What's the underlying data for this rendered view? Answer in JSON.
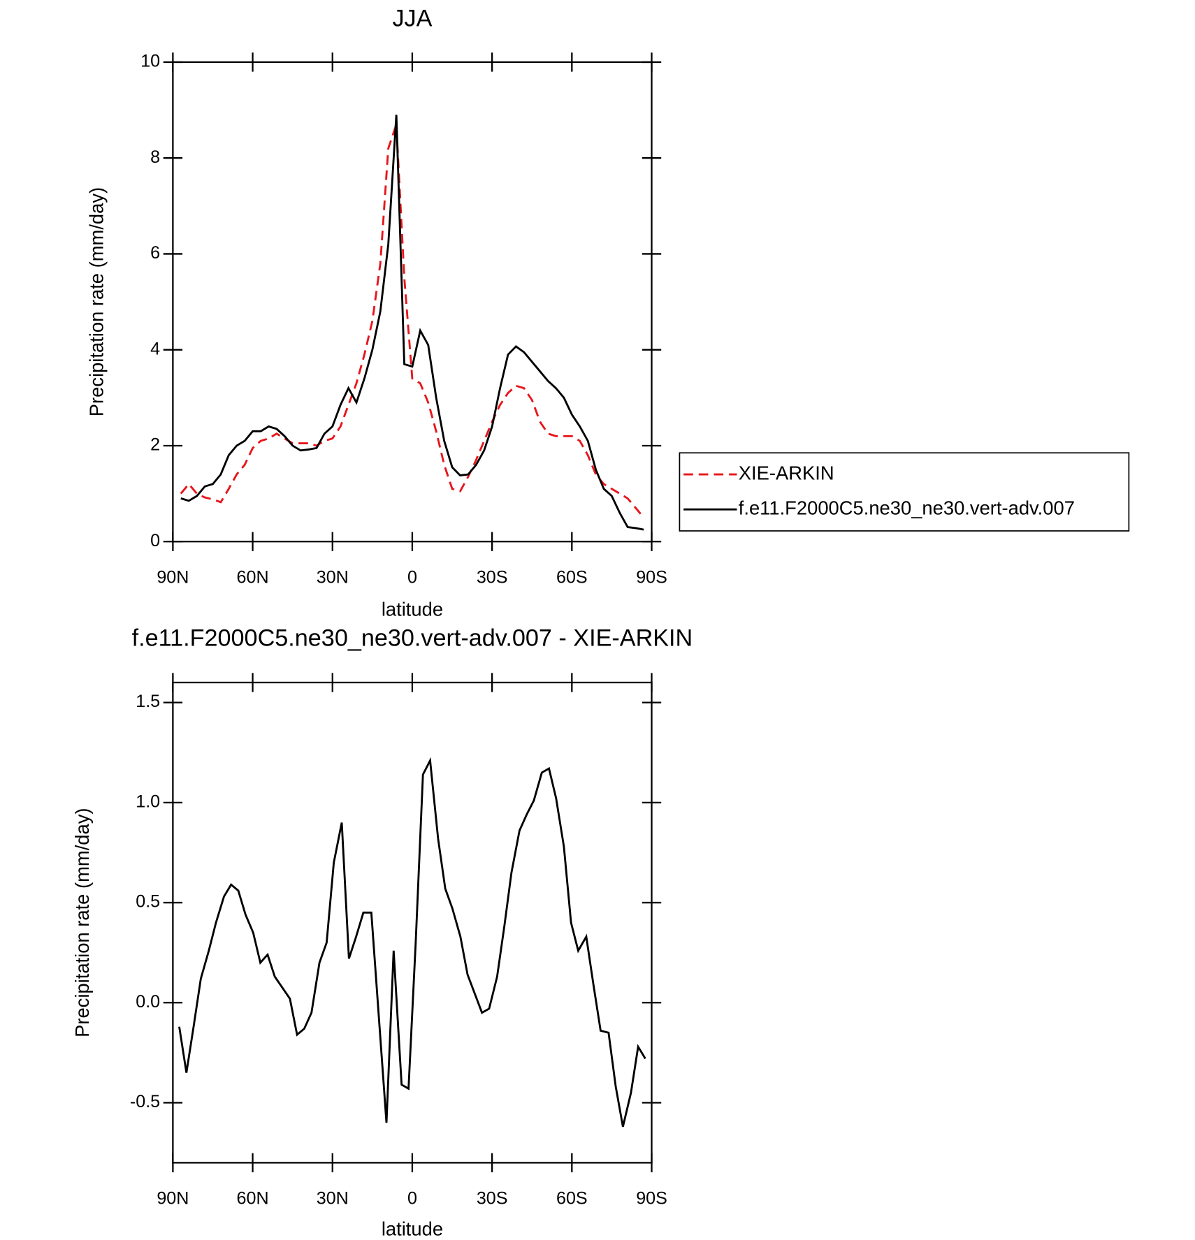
{
  "chart_data": [
    {
      "type": "line",
      "title": "JJA",
      "ylabel": "Precipitation rate (mm/day)",
      "xlabel": "latitude",
      "x": [
        87,
        84,
        81,
        78,
        75,
        72,
        69,
        66,
        63,
        60,
        57,
        54,
        51,
        48,
        45,
        42,
        39,
        36,
        33,
        30,
        27,
        24,
        21,
        18,
        15,
        12,
        9,
        6,
        3,
        0,
        -3,
        -6,
        -9,
        -12,
        -15,
        -18,
        -21,
        -24,
        -27,
        -30,
        -33,
        -36,
        -39,
        -42,
        -45,
        -48,
        -51,
        -54,
        -57,
        -60,
        -63,
        -66,
        -69,
        -72,
        -75,
        -78,
        -81,
        -84,
        -87
      ],
      "series": [
        {
          "name": "XIE-ARKIN",
          "color": "#e8151b",
          "dash": true,
          "values": [
            1.0,
            1.2,
            1.0,
            0.92,
            0.88,
            0.82,
            1.1,
            1.4,
            1.6,
            1.95,
            2.1,
            2.15,
            2.25,
            2.15,
            2.05,
            2.05,
            2.05,
            2.0,
            2.1,
            2.15,
            2.4,
            2.85,
            3.3,
            3.9,
            4.6,
            5.8,
            8.2,
            8.7,
            5.5,
            3.4,
            3.3,
            2.9,
            2.3,
            1.6,
            1.1,
            1.05,
            1.35,
            1.7,
            2.1,
            2.5,
            2.85,
            3.1,
            3.25,
            3.2,
            2.95,
            2.5,
            2.25,
            2.2,
            2.2,
            2.2,
            2.1,
            1.8,
            1.4,
            1.2,
            1.1,
            1.0,
            0.9,
            0.7,
            0.5
          ]
        },
        {
          "name": "f.e11.F2000C5.ne30_ne30.vert-adv.007",
          "color": "#000000",
          "dash": false,
          "values": [
            0.9,
            0.85,
            0.95,
            1.15,
            1.2,
            1.4,
            1.8,
            2.0,
            2.1,
            2.3,
            2.3,
            2.4,
            2.35,
            2.2,
            2.0,
            1.9,
            1.92,
            1.95,
            2.25,
            2.4,
            2.85,
            3.2,
            2.9,
            3.4,
            4.0,
            4.8,
            6.2,
            8.9,
            3.7,
            3.65,
            4.4,
            4.1,
            3.0,
            2.1,
            1.55,
            1.38,
            1.4,
            1.6,
            1.9,
            2.4,
            3.2,
            3.9,
            4.07,
            3.95,
            3.75,
            3.55,
            3.35,
            3.2,
            3.0,
            2.65,
            2.4,
            2.1,
            1.5,
            1.1,
            0.95,
            0.6,
            0.3,
            0.28,
            0.25
          ]
        }
      ],
      "xlim": [
        90,
        -90
      ],
      "xticks": [
        {
          "value": 90,
          "label": "90N"
        },
        {
          "value": 60,
          "label": "60N"
        },
        {
          "value": 30,
          "label": "30N"
        },
        0,
        {
          "value": -30,
          "label": "30S"
        },
        {
          "value": -60,
          "label": "60S"
        },
        {
          "value": -90,
          "label": "90S"
        }
      ],
      "ylim": [
        0,
        10
      ],
      "yticks": [
        0,
        2,
        4,
        6,
        8,
        10
      ],
      "legend": "right"
    },
    {
      "type": "line",
      "title": "f.e11.F2000C5.ne30_ne30.vert-adv.007 - XIE-ARKIN",
      "ylabel": "Precipitation rate (mm/day)",
      "xlabel": "latitude",
      "x": [
        87.6,
        84.9,
        82.2,
        79.5,
        76.5,
        73.8,
        70.8,
        68.1,
        65.4,
        62.7,
        59.8,
        57.1,
        54.4,
        51.7,
        46.0,
        43.3,
        40.6,
        37.9,
        34.9,
        32.2,
        29.5,
        26.5,
        23.8,
        21.1,
        18.4,
        15.4,
        9.7,
        7.0,
        4.0,
        1.4,
        -1.3,
        -4.0,
        -6.7,
        -9.7,
        -12.4,
        -15.1,
        -18.1,
        -20.8,
        -26.2,
        -28.9,
        -31.9,
        -34.6,
        -37.3,
        -40.3,
        -43.0,
        -45.7,
        -48.7,
        -51.4,
        -54.1,
        -57.0,
        -59.7,
        -62.4,
        -65.4,
        -68.1,
        -70.8,
        -73.8,
        -76.5,
        -79.2,
        -82.2,
        -84.9,
        -87.6
      ],
      "values": [
        -0.12,
        -0.35,
        -0.12,
        0.12,
        0.26,
        0.4,
        0.53,
        0.59,
        0.56,
        0.44,
        0.35,
        0.2,
        0.24,
        0.13,
        0.02,
        -0.16,
        -0.13,
        -0.05,
        0.2,
        0.3,
        0.7,
        0.9,
        0.22,
        0.33,
        0.45,
        0.45,
        -0.6,
        0.26,
        -0.41,
        -0.43,
        0.3,
        1.14,
        1.21,
        0.82,
        0.57,
        0.47,
        0.33,
        0.14,
        -0.05,
        -0.03,
        0.13,
        0.38,
        0.65,
        0.86,
        0.94,
        1.01,
        1.15,
        1.17,
        1.02,
        0.78,
        0.4,
        0.26,
        0.33,
        0.09,
        -0.14,
        -0.15,
        -0.42,
        -0.62,
        -0.45,
        -0.22,
        -0.28
      ],
      "color": "#000000",
      "xlim": [
        90,
        -90
      ],
      "xticks": [
        {
          "value": 90,
          "label": "90N"
        },
        {
          "value": 60,
          "label": "60N"
        },
        {
          "value": 30,
          "label": "30N"
        },
        0,
        {
          "value": -30,
          "label": "30S"
        },
        {
          "value": -60,
          "label": "60S"
        },
        {
          "value": -90,
          "label": "90S"
        }
      ],
      "ylim": [
        -0.8,
        1.6
      ],
      "yticks": [
        -0.5,
        {
          "value": 0,
          "label": "0.0"
        },
        0.5,
        {
          "value": 1,
          "label": "1.0"
        },
        1.5
      ]
    }
  ]
}
